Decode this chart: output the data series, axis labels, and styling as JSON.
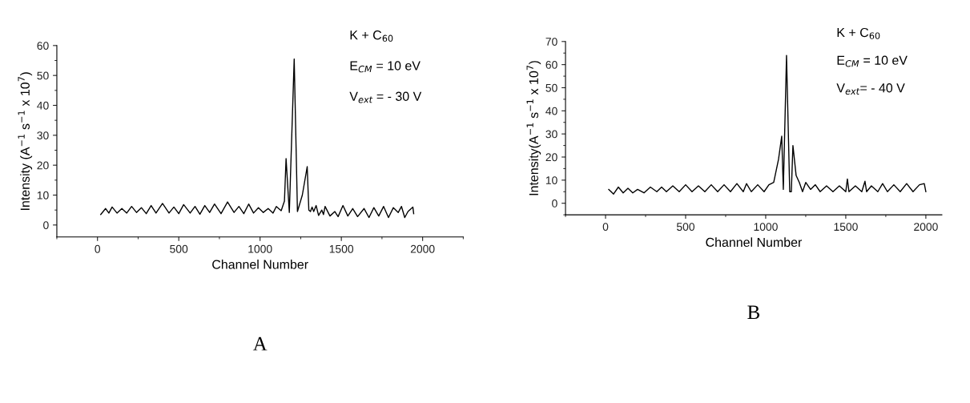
{
  "chart_data": [
    {
      "type": "line",
      "xlabel": "Channel Number",
      "ylabel": "Intensity (A$^{−1}$ s$^{−1}$ x 10$^{7}$)",
      "annotations": [
        "K + C$_{60}$",
        "E$_{CM}$ = 10 eV",
        "V$_{ext}$ = - 30 V",
        "A"
      ],
      "xlim": [
        -250,
        2250
      ],
      "xticks": [
        0,
        500,
        1000,
        1500,
        2000
      ],
      "ylim": [
        -4,
        60
      ],
      "yticks": [
        0,
        10,
        20,
        30,
        40,
        50,
        60
      ],
      "grid": false,
      "legend": false,
      "series": [
        {
          "color": "#000000",
          "x": [
            20,
            50,
            70,
            90,
            120,
            150,
            180,
            210,
            240,
            270,
            300,
            330,
            360,
            400,
            440,
            470,
            500,
            530,
            570,
            600,
            630,
            660,
            690,
            720,
            760,
            800,
            840,
            870,
            900,
            930,
            960,
            990,
            1020,
            1050,
            1080,
            1100,
            1130,
            1150,
            1160,
            1180,
            1210,
            1230,
            1260,
            1290,
            1300,
            1310,
            1320,
            1330,
            1345,
            1360,
            1380,
            1390,
            1400,
            1430,
            1460,
            1480,
            1510,
            1540,
            1570,
            1600,
            1640,
            1670,
            1700,
            1730,
            1760,
            1790,
            1820,
            1850,
            1870,
            1890,
            1910,
            1940,
            1945
          ],
          "values": [
            3.5,
            5.5,
            4,
            6,
            4,
            5.5,
            4,
            6.2,
            4.2,
            5.8,
            3.8,
            6.5,
            4,
            7.2,
            4,
            6,
            3.8,
            6.8,
            4,
            6.2,
            3.6,
            6.5,
            4.2,
            7,
            3.8,
            7.7,
            4.2,
            6.2,
            3.8,
            7,
            4,
            5.8,
            4.2,
            5.5,
            4,
            6.2,
            4.8,
            8,
            22.2,
            4.2,
            55.5,
            4.5,
            10,
            19.5,
            5,
            4.5,
            6,
            4.5,
            6.5,
            3.2,
            5,
            3.5,
            6.2,
            3,
            4.5,
            2.8,
            6.5,
            3,
            5.5,
            2.8,
            5.5,
            2.5,
            5.8,
            3,
            6.2,
            2.5,
            5.8,
            4.2,
            6.2,
            2.5,
            4.5,
            6,
            3.8
          ]
        }
      ]
    },
    {
      "type": "line",
      "xlabel": "Channel Number",
      "ylabel": "Intensity(A$^{−1}$ s$^{−1}$ x 10$^{7}$)",
      "annotations": [
        "K + C$_{60}$",
        "E$_{CM}$ = 10 eV",
        "V$_{ext}$= - 40 V",
        "B"
      ],
      "xlim": [
        -250,
        2100
      ],
      "xticks": [
        0,
        500,
        1000,
        1500,
        2000
      ],
      "ylim": [
        -5,
        70
      ],
      "yticks": [
        0,
        10,
        20,
        30,
        40,
        50,
        60,
        70
      ],
      "grid": false,
      "legend": false,
      "series": [
        {
          "color": "#000000",
          "x": [
            20,
            50,
            80,
            110,
            140,
            170,
            200,
            240,
            280,
            320,
            350,
            380,
            420,
            460,
            500,
            540,
            580,
            620,
            660,
            700,
            740,
            780,
            820,
            860,
            880,
            910,
            950,
            990,
            1020,
            1050,
            1080,
            1100,
            1110,
            1130,
            1150,
            1160,
            1170,
            1190,
            1210,
            1230,
            1250,
            1280,
            1310,
            1340,
            1380,
            1420,
            1460,
            1500,
            1510,
            1520,
            1560,
            1600,
            1620,
            1630,
            1660,
            1700,
            1730,
            1760,
            1800,
            1840,
            1880,
            1920,
            1960,
            1990,
            2000
          ],
          "values": [
            6,
            4,
            7,
            4.5,
            6.5,
            4.5,
            6,
            4.5,
            7,
            5,
            7,
            5,
            7.5,
            5,
            8,
            5,
            7.5,
            5,
            8,
            5,
            8,
            5,
            8.5,
            5,
            8.5,
            5,
            8,
            5,
            8,
            9,
            19,
            29,
            6,
            64,
            5,
            5,
            25,
            12,
            9,
            5,
            9,
            6,
            8,
            5,
            7.5,
            5,
            7.5,
            5,
            10.5,
            5,
            7.5,
            5,
            9.5,
            5,
            7.5,
            5,
            8.5,
            5,
            8,
            5,
            8.5,
            5,
            8,
            8.5,
            5
          ]
        }
      ]
    }
  ]
}
